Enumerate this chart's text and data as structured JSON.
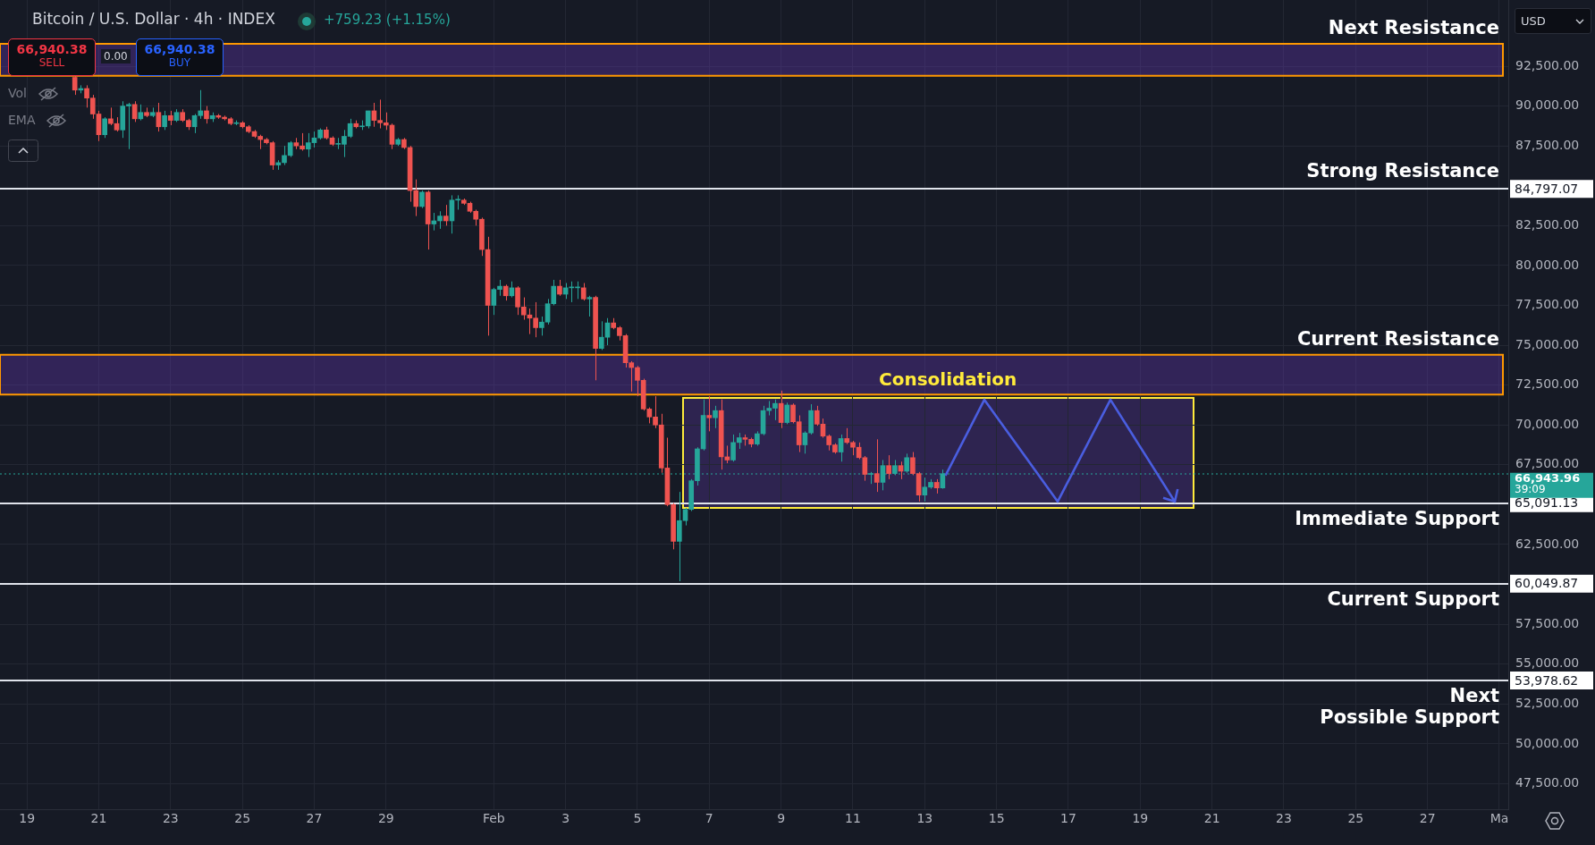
{
  "chart_data": {
    "type": "candlestick",
    "title": "Bitcoin / U.S. Dollar · 4h · INDEX",
    "x": [
      "--01-20T08:00",
      "--01-20T12:00",
      "--01-20T16:00",
      "--01-20T20:00",
      "--01-21T00:00",
      "--01-21T04:00",
      "--01-21T08:00",
      "--01-21T12:00",
      "--01-21T16:00",
      "--01-21T20:00",
      "--01-22T00:00",
      "--01-22T04:00",
      "--01-22T08:00",
      "--01-22T12:00",
      "--01-22T16:00",
      "--01-22T20:00",
      "--01-23T00:00",
      "--01-23T04:00",
      "--01-23T08:00",
      "--01-23T12:00",
      "--01-23T16:00",
      "--01-23T20:00",
      "--01-24T00:00",
      "--01-24T04:00",
      "--01-24T08:00",
      "--01-24T12:00",
      "--01-24T16:00",
      "--01-24T20:00",
      "--01-25T00:00",
      "--01-25T04:00",
      "--01-25T08:00",
      "--01-25T12:00",
      "--01-25T16:00",
      "--01-25T20:00",
      "--01-26T00:00",
      "--01-26T04:00",
      "--01-26T08:00",
      "--01-26T12:00",
      "--01-26T16:00",
      "--01-26T20:00",
      "--01-27T00:00",
      "--01-27T04:00",
      "--01-27T08:00",
      "--01-27T12:00",
      "--01-27T16:00",
      "--01-27T20:00",
      "--01-28T00:00",
      "--01-28T04:00",
      "--01-28T08:00",
      "--01-28T12:00",
      "--01-28T16:00",
      "--01-28T20:00",
      "--01-29T00:00",
      "--01-29T04:00",
      "--01-29T08:00",
      "--01-29T12:00",
      "--01-29T16:00",
      "--01-29T20:00",
      "--01-30T00:00",
      "--01-30T04:00",
      "--01-30T08:00",
      "--01-30T12:00",
      "--01-30T16:00",
      "--01-30T20:00",
      "--01-31T00:00",
      "--01-31T04:00",
      "--01-31T08:00",
      "--01-31T12:00",
      "--01-31T16:00",
      "--01-31T20:00",
      "--02-01T00:00",
      "--02-01T04:00",
      "--02-01T08:00",
      "--02-01T12:00",
      "--02-01T16:00",
      "--02-01T20:00",
      "--02-02T00:00",
      "--02-02T04:00",
      "--02-02T08:00",
      "--02-02T12:00",
      "--02-02T16:00",
      "--02-02T20:00",
      "--02-03T00:00",
      "--02-03T04:00",
      "--02-03T08:00",
      "--02-03T12:00",
      "--02-03T16:00",
      "--02-03T20:00",
      "--02-04T00:00",
      "--02-04T04:00",
      "--02-04T08:00",
      "--02-04T12:00",
      "--02-04T16:00",
      "--02-04T20:00",
      "--02-05T00:00",
      "--02-05T04:00",
      "--02-05T08:00",
      "--02-05T12:00",
      "--02-05T16:00",
      "--02-05T20:00",
      "--02-06T00:00",
      "--02-06T04:00",
      "--02-06T08:00",
      "--02-06T12:00",
      "--02-06T16:00",
      "--02-06T20:00",
      "--02-07T00:00",
      "--02-07T04:00",
      "--02-07T08:00",
      "--02-07T12:00",
      "--02-07T16:00",
      "--02-07T20:00",
      "--02-08T00:00",
      "--02-08T04:00",
      "--02-08T08:00",
      "--02-08T12:00",
      "--02-08T16:00",
      "--02-08T20:00",
      "--02-09T00:00",
      "--02-09T04:00",
      "--02-09T08:00",
      "--02-09T12:00",
      "--02-09T16:00",
      "--02-09T20:00",
      "--02-10T00:00",
      "--02-10T04:00",
      "--02-10T08:00",
      "--02-10T12:00",
      "--02-10T16:00",
      "--02-10T20:00",
      "--02-11T00:00",
      "--02-11T04:00",
      "--02-11T08:00",
      "--02-11T12:00",
      "--02-11T16:00",
      "--02-11T20:00",
      "--02-12T00:00",
      "--02-12T04:00",
      "--02-12T08:00",
      "--02-12T12:00",
      "--02-12T16:00",
      "--02-12T20:00",
      "--02-13T00:00",
      "--02-13T04:00",
      "--02-13T08:00",
      "--02-13T12:00"
    ],
    "ohlc": [
      [
        91800,
        92000,
        90700,
        91000
      ],
      [
        91000,
        91300,
        90800,
        91100
      ],
      [
        91100,
        91300,
        89900,
        90500
      ],
      [
        90500,
        90700,
        89200,
        89500
      ],
      [
        89500,
        89700,
        87800,
        88200
      ],
      [
        88200,
        89300,
        88000,
        89200
      ],
      [
        89200,
        89900,
        88800,
        88900
      ],
      [
        88900,
        89300,
        88400,
        88500
      ],
      [
        88500,
        90300,
        88000,
        90000
      ],
      [
        90000,
        90200,
        87300,
        90100
      ],
      [
        90100,
        90300,
        89000,
        89200
      ],
      [
        89200,
        90100,
        89100,
        89600
      ],
      [
        89600,
        89900,
        89300,
        89400
      ],
      [
        89400,
        89900,
        89300,
        89600
      ],
      [
        89600,
        90200,
        88400,
        88700
      ],
      [
        88700,
        89700,
        88500,
        89400
      ],
      [
        89400,
        89700,
        88800,
        89100
      ],
      [
        89100,
        89800,
        89000,
        89600
      ],
      [
        89600,
        89800,
        89000,
        89100
      ],
      [
        89100,
        89200,
        88500,
        88700
      ],
      [
        88700,
        89500,
        88300,
        89400
      ],
      [
        89400,
        91000,
        89200,
        89700
      ],
      [
        89700,
        90000,
        88900,
        89200
      ],
      [
        89200,
        89600,
        89000,
        89400
      ],
      [
        89400,
        89500,
        89200,
        89300
      ],
      [
        89300,
        89400,
        89100,
        89200
      ],
      [
        89200,
        89300,
        88800,
        88900
      ],
      [
        88900,
        89100,
        88800,
        88950
      ],
      [
        88950,
        89050,
        88600,
        88700
      ],
      [
        88700,
        88800,
        88300,
        88400
      ],
      [
        88400,
        88500,
        88000,
        88100
      ],
      [
        88100,
        88200,
        87300,
        87900
      ],
      [
        87900,
        88000,
        87600,
        87700
      ],
      [
        87700,
        87800,
        86000,
        86300
      ],
      [
        86300,
        86600,
        86000,
        86450
      ],
      [
        86450,
        87500,
        86300,
        86900
      ],
      [
        86900,
        87800,
        86800,
        87700
      ],
      [
        87700,
        88000,
        87300,
        87500
      ],
      [
        87500,
        88300,
        87200,
        87300
      ],
      [
        87300,
        88300,
        86800,
        87700
      ],
      [
        87700,
        88400,
        87400,
        88000
      ],
      [
        88000,
        88600,
        87900,
        88500
      ],
      [
        88500,
        88700,
        87900,
        88000
      ],
      [
        88000,
        88100,
        87500,
        87600
      ],
      [
        87600,
        88000,
        87300,
        87600
      ],
      [
        87600,
        88500,
        86800,
        88100
      ],
      [
        88100,
        89200,
        88000,
        88900
      ],
      [
        88900,
        89100,
        88600,
        88700
      ],
      [
        88700,
        89100,
        88500,
        88750
      ],
      [
        88750,
        89700,
        88600,
        89700
      ],
      [
        89700,
        90200,
        88700,
        89100
      ],
      [
        89100,
        90400,
        88600,
        88950
      ],
      [
        88950,
        89600,
        88500,
        88800
      ],
      [
        88800,
        88900,
        87300,
        87600
      ],
      [
        87600,
        88000,
        87500,
        87900
      ],
      [
        87900,
        88000,
        87300,
        87400
      ],
      [
        87400,
        87500,
        84000,
        84700
      ],
      [
        84700,
        85400,
        83100,
        83700
      ],
      [
        83700,
        84700,
        83600,
        84600
      ],
      [
        84600,
        84700,
        81000,
        82600
      ],
      [
        82600,
        83300,
        82200,
        82800
      ],
      [
        82800,
        83400,
        82300,
        83100
      ],
      [
        83100,
        83800,
        82500,
        82800
      ],
      [
        82800,
        84400,
        82000,
        84100
      ],
      [
        84100,
        84400,
        83500,
        84100
      ],
      [
        84100,
        84200,
        83800,
        83900
      ],
      [
        83900,
        84000,
        83300,
        83400
      ],
      [
        83400,
        83500,
        82500,
        82900
      ],
      [
        82900,
        83000,
        80600,
        81000
      ],
      [
        81000,
        81800,
        75600,
        77500
      ],
      [
        77500,
        78600,
        76900,
        78500
      ],
      [
        78500,
        79100,
        78100,
        78700
      ],
      [
        78700,
        78800,
        77800,
        78100
      ],
      [
        78100,
        79000,
        78000,
        78600
      ],
      [
        78600,
        78700,
        76900,
        77400
      ],
      [
        77400,
        78000,
        76600,
        76900
      ],
      [
        76900,
        77300,
        75700,
        76700
      ],
      [
        76700,
        77700,
        75500,
        76100
      ],
      [
        76100,
        76800,
        75600,
        76450
      ],
      [
        76450,
        77900,
        76300,
        77600
      ],
      [
        77600,
        79100,
        77500,
        78700
      ],
      [
        78700,
        79100,
        78100,
        78200
      ],
      [
        78200,
        78900,
        77900,
        78600
      ],
      [
        78600,
        79000,
        77700,
        78600
      ],
      [
        78600,
        79000,
        77900,
        78600
      ],
      [
        78600,
        78900,
        77800,
        77900
      ],
      [
        77900,
        78100,
        76800,
        78000
      ],
      [
        78000,
        78100,
        72800,
        74800
      ],
      [
        74800,
        76500,
        74700,
        75500
      ],
      [
        75500,
        76700,
        75000,
        76400
      ],
      [
        76400,
        76700,
        76000,
        76100
      ],
      [
        76100,
        76200,
        75300,
        75600
      ],
      [
        75600,
        75700,
        73600,
        73900
      ],
      [
        73900,
        74000,
        72100,
        73600
      ],
      [
        73600,
        73700,
        71800,
        72800
      ],
      [
        72800,
        72900,
        70900,
        71000
      ],
      [
        71000,
        71100,
        70100,
        70500
      ],
      [
        70500,
        71800,
        69800,
        70000
      ],
      [
        70000,
        70700,
        67000,
        67300
      ],
      [
        67300,
        69200,
        64900,
        65000
      ],
      [
        65000,
        65100,
        62200,
        62700
      ],
      [
        62700,
        65800,
        60200,
        64000
      ],
      [
        64000,
        64800,
        63700,
        64700
      ],
      [
        64700,
        66600,
        64600,
        66500
      ],
      [
        66500,
        68600,
        66200,
        68500
      ],
      [
        68500,
        71600,
        68400,
        70600
      ],
      [
        70600,
        71800,
        69600,
        70450
      ],
      [
        70450,
        71200,
        69800,
        70900
      ],
      [
        70900,
        71600,
        67200,
        68000
      ],
      [
        68000,
        68700,
        67600,
        67800
      ],
      [
        67800,
        69400,
        67700,
        68900
      ],
      [
        68900,
        69500,
        68500,
        69200
      ],
      [
        69200,
        69400,
        68700,
        69100
      ],
      [
        69100,
        69200,
        68600,
        68800
      ],
      [
        68800,
        69600,
        68700,
        69450
      ],
      [
        69450,
        71200,
        69350,
        70900
      ],
      [
        70900,
        71500,
        70600,
        71050
      ],
      [
        71050,
        71600,
        70300,
        71350
      ],
      [
        71350,
        72150,
        69800,
        70150
      ],
      [
        70150,
        71400,
        70050,
        71250
      ],
      [
        71250,
        71350,
        70100,
        70200
      ],
      [
        70200,
        70600,
        68300,
        68750
      ],
      [
        68750,
        69600,
        68200,
        69500
      ],
      [
        69500,
        71300,
        69400,
        70900
      ],
      [
        70900,
        71200,
        69950,
        70050
      ],
      [
        70050,
        70400,
        69200,
        69300
      ],
      [
        69300,
        69400,
        68400,
        68750
      ],
      [
        68750,
        68850,
        68200,
        68300
      ],
      [
        68300,
        69400,
        67700,
        69150
      ],
      [
        69150,
        69800,
        68800,
        68900
      ],
      [
        68900,
        69000,
        68100,
        68600
      ],
      [
        68600,
        68900,
        67850,
        67950
      ],
      [
        67950,
        68050,
        66500,
        66900
      ],
      [
        66900,
        67050,
        66300,
        66950
      ],
      [
        66950,
        69100,
        65800,
        66400
      ],
      [
        66400,
        67800,
        65900,
        67450
      ],
      [
        67450,
        68100,
        66600,
        66950
      ],
      [
        66950,
        67800,
        66850,
        67450
      ],
      [
        67450,
        67700,
        66600,
        67100
      ],
      [
        67100,
        68200,
        67000,
        67950
      ],
      [
        67950,
        68300,
        66850,
        66950
      ],
      [
        66950,
        67050,
        65200,
        65600
      ],
      [
        65600,
        66700,
        65200,
        66100
      ],
      [
        66100,
        66600,
        66000,
        66400
      ],
      [
        66400,
        66600,
        65700,
        66050
      ],
      [
        66050,
        67200,
        66000,
        66943.96
      ]
    ],
    "xlim": [
      "--01-18T06:00",
      "--03-01T06:00"
    ],
    "xticks": [
      {
        "value": "--01-19",
        "label": "19"
      },
      {
        "value": "--01-21",
        "label": "21"
      },
      {
        "value": "--01-23",
        "label": "23"
      },
      {
        "value": "--01-25",
        "label": "25"
      },
      {
        "value": "--01-27",
        "label": "27"
      },
      {
        "value": "--01-29",
        "label": "29"
      },
      {
        "value": "--02-01",
        "label": "Feb"
      },
      {
        "value": "--02-03",
        "label": "3"
      },
      {
        "value": "--02-05",
        "label": "5"
      },
      {
        "value": "--02-07",
        "label": "7"
      },
      {
        "value": "--02-09",
        "label": "9"
      },
      {
        "value": "--02-11",
        "label": "11"
      },
      {
        "value": "--02-13",
        "label": "13"
      },
      {
        "value": "--02-15",
        "label": "15"
      },
      {
        "value": "--02-17",
        "label": "17"
      },
      {
        "value": "--02-19",
        "label": "19"
      },
      {
        "value": "--02-21",
        "label": "21"
      },
      {
        "value": "--02-23",
        "label": "23"
      },
      {
        "value": "--02-25",
        "label": "25"
      },
      {
        "value": "--02-27",
        "label": "27"
      },
      {
        "value": "--03-01",
        "label": "Ma"
      }
    ],
    "ylim": [
      45900,
      96650
    ],
    "yticks": [
      {
        "value": 47500,
        "label": "47,500.00"
      },
      {
        "value": 50000,
        "label": "50,000.00"
      },
      {
        "value": 52500,
        "label": "52,500.00"
      },
      {
        "value": 55000,
        "label": "55,000.00"
      },
      {
        "value": 57500,
        "label": "57,500.00"
      },
      {
        "value": 62500,
        "label": "62,500.00"
      },
      {
        "value": 67500,
        "label": "67,500.00"
      },
      {
        "value": 70000,
        "label": "70,000.00"
      },
      {
        "value": 72500,
        "label": "72,500.00"
      },
      {
        "value": 75000,
        "label": "75,000.00"
      },
      {
        "value": 77500,
        "label": "77,500.00"
      },
      {
        "value": 80000,
        "label": "80,000.00"
      },
      {
        "value": 82500,
        "label": "82,500.00"
      },
      {
        "value": 87500,
        "label": "87,500.00"
      },
      {
        "value": 90000,
        "label": "90,000.00"
      },
      {
        "value": 92500,
        "label": "92,500.00"
      }
    ],
    "grid": true,
    "bands": [
      {
        "axis": "y",
        "from": 91900,
        "to": 93900,
        "label": "Next Resistance",
        "color": "#673ab7"
      },
      {
        "axis": "y",
        "from": 71900,
        "to": 74400,
        "label": "Current Resistance",
        "color": "#673ab7"
      }
    ],
    "ref_lines": [
      {
        "axis": "y",
        "value": 84797.07,
        "label": "Strong Resistance",
        "color": "#e0e3eb"
      },
      {
        "axis": "y",
        "value": 65091.13,
        "label": "Immediate Support",
        "color": "#e0e3eb"
      },
      {
        "axis": "y",
        "value": 60049.87,
        "label": "Current Support",
        "color": "#e0e3eb"
      },
      {
        "axis": "y",
        "value": 53978.62,
        "label": "Next\nPossible Support",
        "color": "#e0e3eb"
      },
      {
        "axis": "y",
        "value": 66943.96,
        "color": "#26a69a",
        "line_style": "dotted"
      }
    ],
    "annotations": [
      "66,940.38",
      "SELL",
      "0.00",
      "66,940.38",
      "BUY",
      "+759.23 (+1.15%)",
      "Vol",
      "EMA",
      "USD",
      "Consolidation",
      "84,797.07",
      "65,091.13",
      "60,049.87",
      "53,978.62",
      "66,943.96",
      "39:09"
    ]
  }
}
